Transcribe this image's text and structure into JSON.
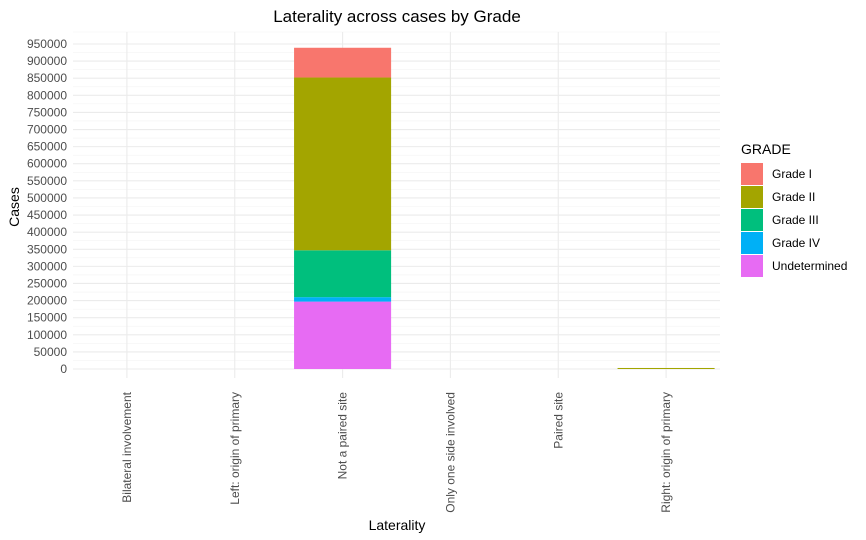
{
  "chart_data": {
    "type": "bar",
    "stacked": true,
    "title": "Laterality across cases by Grade",
    "xlabel": "Laterality",
    "ylabel": "Cases",
    "categories": [
      "Bilateral involvement",
      "Left: origin of primary",
      "Not a paired site",
      "Only one side involved",
      "Paired site",
      "Right: origin of primary"
    ],
    "ylim": [
      0,
      950000
    ],
    "yticks": [
      0,
      50000,
      100000,
      150000,
      200000,
      250000,
      300000,
      350000,
      400000,
      450000,
      500000,
      550000,
      600000,
      650000,
      700000,
      750000,
      800000,
      850000,
      900000,
      950000
    ],
    "grid": true,
    "legend": {
      "title": "GRADE",
      "position": "right"
    },
    "series": [
      {
        "name": "Undetermined",
        "color": "#E76BF3",
        "values": [
          0,
          0,
          197000,
          0,
          0,
          0
        ]
      },
      {
        "name": "Grade IV",
        "color": "#00B0F6",
        "values": [
          0,
          0,
          13000,
          0,
          0,
          0
        ]
      },
      {
        "name": "Grade III",
        "color": "#00BF7D",
        "values": [
          0,
          0,
          137000,
          0,
          0,
          0
        ]
      },
      {
        "name": "Grade II",
        "color": "#A3A500",
        "values": [
          0,
          0,
          505000,
          0,
          0,
          3000
        ]
      },
      {
        "name": "Grade I",
        "color": "#F8766D",
        "values": [
          0,
          0,
          87000,
          0,
          0,
          0
        ]
      }
    ],
    "legend_order": [
      "Grade I",
      "Grade II",
      "Grade III",
      "Grade IV",
      "Undetermined"
    ]
  }
}
